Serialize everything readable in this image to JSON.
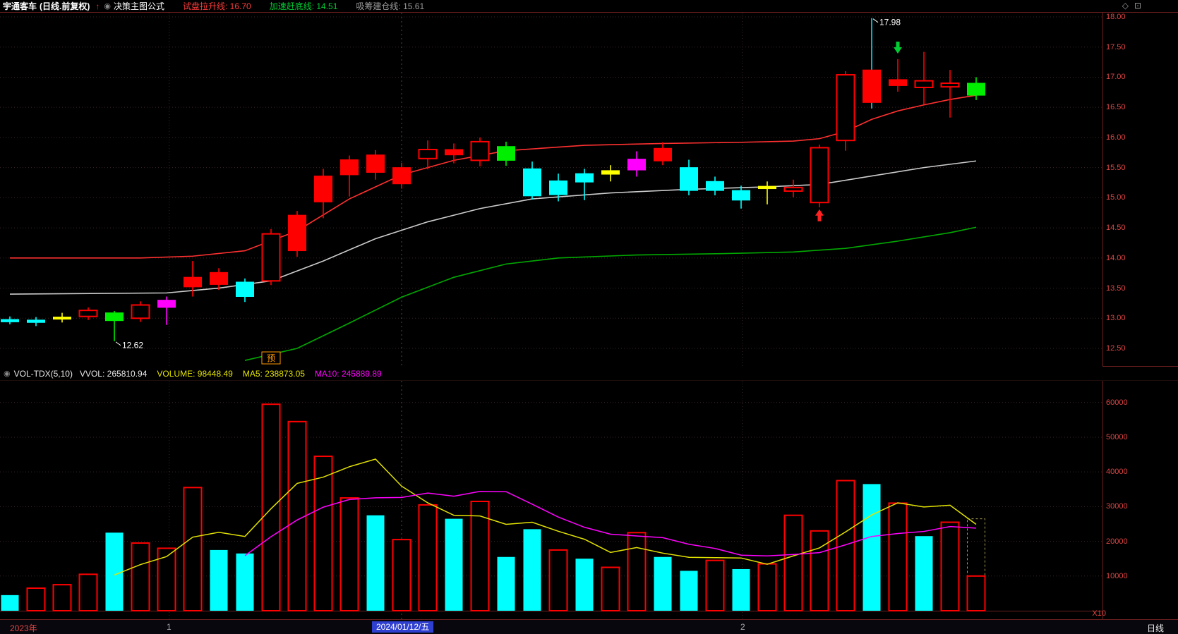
{
  "title_bar": {
    "stock_name": "宇通客车",
    "period": "(日线.前复权)",
    "up_arrow_icon": "↑",
    "toggle_icon": "◉",
    "formula_name": "决策主图公式",
    "indicators": [
      {
        "label": "试盘拉升线:",
        "value": "16.70",
        "color": "#ff3b3b"
      },
      {
        "label": "加速赶底线:",
        "value": "14.51",
        "color": "#00cc33"
      },
      {
        "label": "吸筹建仓线:",
        "value": "15.61",
        "color": "#9a9a9a"
      }
    ],
    "corner_icons": [
      "◇",
      "⊡"
    ]
  },
  "vol_header": {
    "toggle_icon": "◉",
    "name": "VOL-TDX(5,10)",
    "vvol_label": "VVOL:",
    "vvol": "265810.94",
    "volume_label": "VOLUME:",
    "volume": "98448.49",
    "ma5_label": "MA5:",
    "ma5": "238873.05",
    "ma10_label": "MA10:",
    "ma10": "245889.89"
  },
  "bottom_bar": {
    "year": "2023年",
    "tick1": "1",
    "date": "2024/01/12/五",
    "tick2": "2",
    "x10": "X10",
    "period": "日线"
  },
  "colors": {
    "up": "#ff0000",
    "down": "#00ffff",
    "green2": "#00ee00",
    "magenta": "#ff00ff",
    "yellow": "#ffff00",
    "ma_red": "#ff3030",
    "ma_white": "#cccccc",
    "ma_green": "#00aa00",
    "vol_ma5": "#e3e300",
    "vol_ma10": "#ff00ff",
    "grid": "#3c2626",
    "frame": "#6a1f1f",
    "axis_text": "#e04545",
    "annotation": "#ffffff",
    "pre": "#ff9900",
    "buy": "#ff2222",
    "sell": "#00cc33"
  },
  "chart_data": {
    "type": "candlestick",
    "title": "宇通客车 日线 前复权",
    "price_range": [
      12.5,
      18.0
    ],
    "price_ticks": [
      18.0,
      17.5,
      17.0,
      16.5,
      16.0,
      15.5,
      15.0,
      14.5,
      14.0,
      13.5,
      13.0,
      12.5
    ],
    "vol_ticks": [
      60000,
      50000,
      40000,
      30000,
      20000,
      10000
    ],
    "vol_max": 63000,
    "candles": [
      {
        "o": 12.98,
        "h": 13.03,
        "l": 12.9,
        "c": 12.94,
        "k": "cyan",
        "v": 4500,
        "vc": "d"
      },
      {
        "o": 12.97,
        "h": 13.02,
        "l": 12.87,
        "c": 12.93,
        "k": "cyan",
        "v": 6500,
        "vc": "u"
      },
      {
        "o": 13.0,
        "h": 13.09,
        "l": 12.93,
        "c": 13.02,
        "k": "yellow",
        "v": 7500,
        "vc": "u"
      },
      {
        "o": 13.03,
        "h": 13.18,
        "l": 12.97,
        "c": 13.13,
        "k": "red_h",
        "v": 10500,
        "vc": "u"
      },
      {
        "o": 13.09,
        "h": 13.12,
        "l": 12.62,
        "c": 12.96,
        "k": "green",
        "v": 22500,
        "vc": "d"
      },
      {
        "o": 13.0,
        "h": 13.28,
        "l": 12.94,
        "c": 13.22,
        "k": "red_h",
        "v": 19500,
        "vc": "u"
      },
      {
        "o": 13.18,
        "h": 13.36,
        "l": 12.89,
        "c": 13.3,
        "k": "magenta",
        "v": 18000,
        "vc": "u"
      },
      {
        "o": 13.52,
        "h": 13.95,
        "l": 13.36,
        "c": 13.68,
        "k": "red_s",
        "v": 35500,
        "vc": "u"
      },
      {
        "o": 13.56,
        "h": 13.83,
        "l": 13.47,
        "c": 13.76,
        "k": "red_s",
        "v": 17500,
        "vc": "d"
      },
      {
        "o": 13.6,
        "h": 13.66,
        "l": 13.27,
        "c": 13.36,
        "k": "cyan",
        "v": 16500,
        "vc": "d"
      },
      {
        "o": 13.62,
        "h": 14.48,
        "l": 13.55,
        "c": 14.4,
        "k": "red_h",
        "v": 59500,
        "vc": "u"
      },
      {
        "o": 14.12,
        "h": 14.78,
        "l": 14.02,
        "c": 14.71,
        "k": "red_s",
        "v": 54500,
        "vc": "u"
      },
      {
        "o": 14.93,
        "h": 15.48,
        "l": 14.66,
        "c": 15.36,
        "k": "red_s",
        "v": 44500,
        "vc": "u"
      },
      {
        "o": 15.38,
        "h": 15.7,
        "l": 15.02,
        "c": 15.63,
        "k": "red_s",
        "v": 32500,
        "vc": "u"
      },
      {
        "o": 15.42,
        "h": 15.79,
        "l": 15.3,
        "c": 15.71,
        "k": "red_s",
        "v": 27500,
        "vc": "d"
      },
      {
        "o": 15.5,
        "h": 15.58,
        "l": 15.15,
        "c": 15.23,
        "k": "red_s",
        "v": 20500,
        "vc": "u"
      },
      {
        "o": 15.65,
        "h": 15.95,
        "l": 15.47,
        "c": 15.8,
        "k": "red_h",
        "v": 30500,
        "vc": "u"
      },
      {
        "o": 15.71,
        "h": 15.9,
        "l": 15.57,
        "c": 15.8,
        "k": "red_s",
        "v": 26500,
        "vc": "d"
      },
      {
        "o": 15.62,
        "h": 16.0,
        "l": 15.52,
        "c": 15.93,
        "k": "red_h",
        "v": 31500,
        "vc": "u"
      },
      {
        "o": 15.85,
        "h": 15.93,
        "l": 15.53,
        "c": 15.62,
        "k": "green",
        "v": 15500,
        "vc": "d"
      },
      {
        "o": 15.48,
        "h": 15.6,
        "l": 14.97,
        "c": 15.03,
        "k": "cyan",
        "v": 23500,
        "vc": "d"
      },
      {
        "o": 15.28,
        "h": 15.4,
        "l": 14.94,
        "c": 15.05,
        "k": "cyan",
        "v": 17500,
        "vc": "u"
      },
      {
        "o": 15.4,
        "h": 15.48,
        "l": 14.96,
        "c": 15.26,
        "k": "cyan",
        "v": 15000,
        "vc": "d"
      },
      {
        "o": 15.39,
        "h": 15.54,
        "l": 15.27,
        "c": 15.45,
        "k": "yellow",
        "v": 12500,
        "vc": "u"
      },
      {
        "o": 15.46,
        "h": 15.77,
        "l": 15.35,
        "c": 15.64,
        "k": "magenta",
        "v": 22500,
        "vc": "u"
      },
      {
        "o": 15.61,
        "h": 15.92,
        "l": 15.54,
        "c": 15.82,
        "k": "red_s",
        "v": 15500,
        "vc": "d"
      },
      {
        "o": 15.5,
        "h": 15.63,
        "l": 15.04,
        "c": 15.12,
        "k": "cyan",
        "v": 11500,
        "vc": "d"
      },
      {
        "o": 15.27,
        "h": 15.35,
        "l": 15.04,
        "c": 15.12,
        "k": "cyan",
        "v": 14500,
        "vc": "u"
      },
      {
        "o": 15.12,
        "h": 15.2,
        "l": 14.82,
        "c": 14.96,
        "k": "cyan",
        "v": 12000,
        "vc": "d"
      },
      {
        "o": 15.15,
        "h": 15.27,
        "l": 14.89,
        "c": 15.19,
        "k": "yellow",
        "v": 13500,
        "vc": "u"
      },
      {
        "o": 15.11,
        "h": 15.3,
        "l": 15.01,
        "c": 15.17,
        "k": "red_h",
        "v": 27500,
        "vc": "u"
      },
      {
        "o": 14.92,
        "h": 15.88,
        "l": 14.84,
        "c": 15.83,
        "k": "red_h",
        "v": 23000,
        "vc": "u"
      },
      {
        "o": 15.95,
        "h": 17.1,
        "l": 15.78,
        "c": 17.04,
        "k": "red_h",
        "v": 37500,
        "vc": "u"
      },
      {
        "o": 17.12,
        "h": 17.98,
        "l": 16.48,
        "c": 16.58,
        "k": "red_s",
        "v": 36500,
        "vc": "d",
        "wick": "#00e0ff"
      },
      {
        "o": 16.86,
        "h": 17.3,
        "l": 16.76,
        "c": 16.96,
        "k": "red_s",
        "v": 31000,
        "vc": "u"
      },
      {
        "o": 16.83,
        "h": 17.42,
        "l": 16.55,
        "c": 16.94,
        "k": "red_h",
        "v": 21500,
        "vc": "d"
      },
      {
        "o": 16.84,
        "h": 17.12,
        "l": 16.33,
        "c": 16.9,
        "k": "red_h",
        "v": 25500,
        "vc": "u"
      },
      {
        "o": 16.9,
        "h": 17.0,
        "l": 16.62,
        "c": 16.7,
        "k": "green",
        "v": 10000,
        "vc": "u"
      }
    ],
    "lines": {
      "red": {
        "name": "试盘拉升线",
        "points": [
          [
            0,
            14.0
          ],
          [
            5,
            14.0
          ],
          [
            7,
            14.03
          ],
          [
            9,
            14.12
          ],
          [
            11,
            14.45
          ],
          [
            13,
            14.98
          ],
          [
            15,
            15.38
          ],
          [
            17,
            15.62
          ],
          [
            19,
            15.78
          ],
          [
            22,
            15.87
          ],
          [
            25,
            15.9
          ],
          [
            28,
            15.92
          ],
          [
            30,
            15.94
          ],
          [
            31,
            15.98
          ],
          [
            32,
            16.1
          ],
          [
            33,
            16.3
          ],
          [
            34,
            16.44
          ],
          [
            35,
            16.54
          ],
          [
            36,
            16.63
          ],
          [
            37,
            16.7
          ]
        ]
      },
      "white": {
        "name": "吸筹建仓线",
        "points": [
          [
            0,
            13.4
          ],
          [
            6,
            13.42
          ],
          [
            8,
            13.5
          ],
          [
            10,
            13.62
          ],
          [
            12,
            13.95
          ],
          [
            14,
            14.32
          ],
          [
            16,
            14.6
          ],
          [
            18,
            14.82
          ],
          [
            20,
            14.98
          ],
          [
            23,
            15.08
          ],
          [
            26,
            15.14
          ],
          [
            29,
            15.18
          ],
          [
            31,
            15.22
          ],
          [
            33,
            15.36
          ],
          [
            35,
            15.5
          ],
          [
            37,
            15.61
          ]
        ]
      },
      "green": {
        "name": "加速赶底线",
        "points": [
          [
            9,
            12.3
          ],
          [
            11,
            12.5
          ],
          [
            13,
            12.92
          ],
          [
            15,
            13.35
          ],
          [
            17,
            13.68
          ],
          [
            19,
            13.9
          ],
          [
            21,
            14.0
          ],
          [
            24,
            14.05
          ],
          [
            27,
            14.07
          ],
          [
            30,
            14.1
          ],
          [
            32,
            14.16
          ],
          [
            34,
            14.28
          ],
          [
            36,
            14.42
          ],
          [
            37,
            14.51
          ]
        ]
      }
    },
    "markers": [
      {
        "i": 31,
        "price": 14.68,
        "dir": "up",
        "color_key": "buy"
      },
      {
        "i": 34,
        "price": 17.52,
        "dir": "down",
        "color_key": "sell"
      }
    ],
    "annotations": [
      {
        "i": 33,
        "price": 17.98,
        "text": "17.98",
        "name": "high-price-annotation"
      },
      {
        "i": 4,
        "price": 12.62,
        "text": "12.62",
        "name": "low-price-annotation"
      }
    ],
    "pre_badge": {
      "i": 10,
      "text": "预"
    },
    "month_lines": [
      {
        "pos": 6.1
      },
      {
        "pos": 28.05
      }
    ],
    "selected_line": {
      "pos": 15
    },
    "forecast": {
      "i": 37,
      "value": 26500
    }
  }
}
